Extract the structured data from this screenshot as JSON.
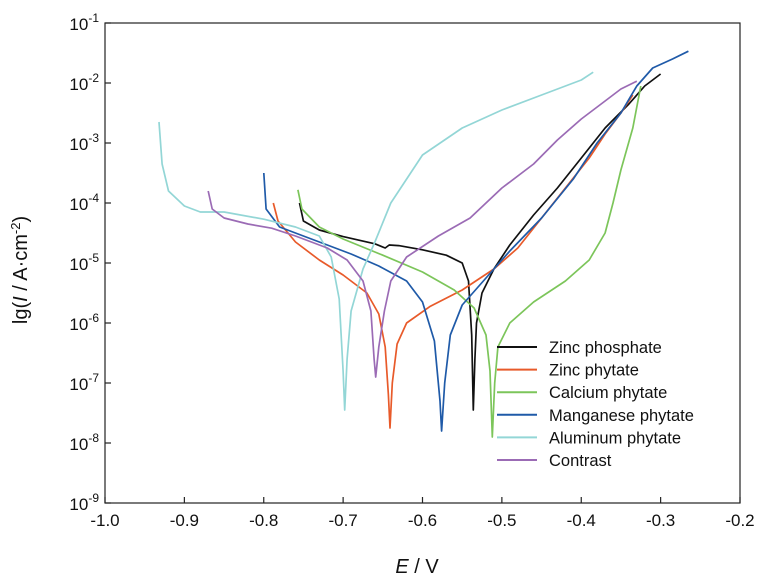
{
  "chart_data": {
    "type": "line",
    "xlabel": "E / V",
    "ylabel": "lg(I / A·cm-2)",
    "xlim": [
      -1.0,
      -0.2
    ],
    "ylim": [
      -9,
      -1
    ],
    "y_scale": "log10",
    "grid": false,
    "legend_position": "bottom-right",
    "x_ticks": [
      -1.0,
      -0.9,
      -0.8,
      -0.7,
      -0.6,
      -0.5,
      -0.4,
      -0.3,
      -0.2
    ],
    "x_tick_labels": [
      "-1.0",
      "-0.9",
      "-0.8",
      "-0.7",
      "-0.6",
      "-0.5",
      "-0.4",
      "-0.3",
      "-0.2"
    ],
    "y_ticks": [
      {
        "value": -9,
        "base": "10",
        "exp": "-9"
      },
      {
        "value": -8,
        "base": "10",
        "exp": "-8"
      },
      {
        "value": -7,
        "base": "10",
        "exp": "-7"
      },
      {
        "value": -6,
        "base": "10",
        "exp": "-6"
      },
      {
        "value": -5,
        "base": "10",
        "exp": "-5"
      },
      {
        "value": -4,
        "base": "10",
        "exp": "-4"
      },
      {
        "value": -3,
        "base": "10",
        "exp": "-3"
      },
      {
        "value": -2,
        "base": "10",
        "exp": "-2"
      },
      {
        "value": -1,
        "base": "10",
        "exp": "-1"
      }
    ],
    "series": [
      {
        "name": "Zinc phosphate",
        "color": "#111111",
        "points": [
          [
            -0.755,
            -4.0
          ],
          [
            -0.75,
            -4.3
          ],
          [
            -0.73,
            -4.45
          ],
          [
            -0.7,
            -4.56
          ],
          [
            -0.66,
            -4.68
          ],
          [
            -0.647,
            -4.75
          ],
          [
            -0.642,
            -4.7
          ],
          [
            -0.63,
            -4.71
          ],
          [
            -0.6,
            -4.78
          ],
          [
            -0.57,
            -4.87
          ],
          [
            -0.55,
            -5.0
          ],
          [
            -0.542,
            -5.3
          ],
          [
            -0.538,
            -6.2
          ],
          [
            -0.536,
            -7.45
          ],
          [
            -0.534,
            -6.6
          ],
          [
            -0.532,
            -6.0
          ],
          [
            -0.525,
            -5.5
          ],
          [
            -0.51,
            -5.1
          ],
          [
            -0.49,
            -4.7
          ],
          [
            -0.46,
            -4.2
          ],
          [
            -0.43,
            -3.75
          ],
          [
            -0.4,
            -3.25
          ],
          [
            -0.37,
            -2.75
          ],
          [
            -0.34,
            -2.35
          ],
          [
            -0.32,
            -2.05
          ],
          [
            -0.3,
            -1.85
          ]
        ]
      },
      {
        "name": "Zinc phytate",
        "color": "#e85a2a",
        "points": [
          [
            -0.788,
            -4.0
          ],
          [
            -0.782,
            -4.3
          ],
          [
            -0.76,
            -4.65
          ],
          [
            -0.73,
            -4.95
          ],
          [
            -0.7,
            -5.2
          ],
          [
            -0.67,
            -5.5
          ],
          [
            -0.655,
            -5.85
          ],
          [
            -0.647,
            -6.4
          ],
          [
            -0.643,
            -7.2
          ],
          [
            -0.641,
            -7.75
          ],
          [
            -0.638,
            -7.0
          ],
          [
            -0.632,
            -6.35
          ],
          [
            -0.62,
            -6.0
          ],
          [
            -0.59,
            -5.72
          ],
          [
            -0.55,
            -5.45
          ],
          [
            -0.51,
            -5.1
          ],
          [
            -0.48,
            -4.75
          ],
          [
            -0.45,
            -4.25
          ],
          [
            -0.42,
            -3.75
          ],
          [
            -0.39,
            -3.25
          ],
          [
            -0.37,
            -2.85
          ],
          [
            -0.35,
            -2.5
          ],
          [
            -0.335,
            -2.2
          ]
        ]
      },
      {
        "name": "Calcium phytate",
        "color": "#7cc55a",
        "points": [
          [
            -0.757,
            -3.78
          ],
          [
            -0.752,
            -4.1
          ],
          [
            -0.73,
            -4.4
          ],
          [
            -0.7,
            -4.6
          ],
          [
            -0.65,
            -4.87
          ],
          [
            -0.6,
            -5.15
          ],
          [
            -0.56,
            -5.45
          ],
          [
            -0.535,
            -5.75
          ],
          [
            -0.52,
            -6.2
          ],
          [
            -0.515,
            -6.8
          ],
          [
            -0.512,
            -7.9
          ],
          [
            -0.509,
            -7.0
          ],
          [
            -0.505,
            -6.4
          ],
          [
            -0.49,
            -6.0
          ],
          [
            -0.46,
            -5.65
          ],
          [
            -0.42,
            -5.3
          ],
          [
            -0.39,
            -4.95
          ],
          [
            -0.37,
            -4.5
          ],
          [
            -0.36,
            -4.0
          ],
          [
            -0.35,
            -3.45
          ],
          [
            -0.335,
            -2.75
          ],
          [
            -0.325,
            -2.05
          ]
        ]
      },
      {
        "name": "Manganese phytate",
        "color": "#1f5aa8",
        "points": [
          [
            -0.8,
            -3.5
          ],
          [
            -0.797,
            -4.1
          ],
          [
            -0.78,
            -4.4
          ],
          [
            -0.75,
            -4.55
          ],
          [
            -0.72,
            -4.7
          ],
          [
            -0.69,
            -4.85
          ],
          [
            -0.655,
            -5.05
          ],
          [
            -0.62,
            -5.3
          ],
          [
            -0.6,
            -5.65
          ],
          [
            -0.585,
            -6.3
          ],
          [
            -0.578,
            -7.3
          ],
          [
            -0.576,
            -7.8
          ],
          [
            -0.572,
            -7.0
          ],
          [
            -0.565,
            -6.2
          ],
          [
            -0.55,
            -5.7
          ],
          [
            -0.52,
            -5.25
          ],
          [
            -0.49,
            -4.8
          ],
          [
            -0.45,
            -4.25
          ],
          [
            -0.41,
            -3.6
          ],
          [
            -0.38,
            -3.0
          ],
          [
            -0.35,
            -2.5
          ],
          [
            -0.33,
            -2.05
          ],
          [
            -0.31,
            -1.75
          ],
          [
            -0.285,
            -1.6
          ],
          [
            -0.265,
            -1.47
          ]
        ]
      },
      {
        "name": "Aluminum phytate",
        "color": "#93d6d6",
        "points": [
          [
            -0.932,
            -2.65
          ],
          [
            -0.928,
            -3.35
          ],
          [
            -0.92,
            -3.8
          ],
          [
            -0.9,
            -4.05
          ],
          [
            -0.88,
            -4.15
          ],
          [
            -0.85,
            -4.15
          ],
          [
            -0.8,
            -4.27
          ],
          [
            -0.76,
            -4.4
          ],
          [
            -0.73,
            -4.55
          ],
          [
            -0.715,
            -4.9
          ],
          [
            -0.705,
            -5.6
          ],
          [
            -0.7,
            -6.8
          ],
          [
            -0.698,
            -7.45
          ],
          [
            -0.695,
            -6.6
          ],
          [
            -0.69,
            -5.8
          ],
          [
            -0.675,
            -5.1
          ],
          [
            -0.66,
            -4.65
          ],
          [
            -0.64,
            -4.0
          ],
          [
            -0.6,
            -3.2
          ],
          [
            -0.55,
            -2.75
          ],
          [
            -0.5,
            -2.45
          ],
          [
            -0.45,
            -2.2
          ],
          [
            -0.4,
            -1.95
          ],
          [
            -0.385,
            -1.82
          ]
        ]
      },
      {
        "name": "Contrast",
        "color": "#9b6bb5",
        "points": [
          [
            -0.87,
            -3.8
          ],
          [
            -0.865,
            -4.1
          ],
          [
            -0.85,
            -4.25
          ],
          [
            -0.82,
            -4.35
          ],
          [
            -0.79,
            -4.42
          ],
          [
            -0.76,
            -4.55
          ],
          [
            -0.72,
            -4.75
          ],
          [
            -0.695,
            -4.95
          ],
          [
            -0.675,
            -5.3
          ],
          [
            -0.665,
            -5.8
          ],
          [
            -0.661,
            -6.6
          ],
          [
            -0.659,
            -6.9
          ],
          [
            -0.655,
            -6.4
          ],
          [
            -0.648,
            -5.8
          ],
          [
            -0.64,
            -5.3
          ],
          [
            -0.62,
            -4.9
          ],
          [
            -0.58,
            -4.55
          ],
          [
            -0.54,
            -4.25
          ],
          [
            -0.5,
            -3.75
          ],
          [
            -0.46,
            -3.35
          ],
          [
            -0.43,
            -2.95
          ],
          [
            -0.4,
            -2.6
          ],
          [
            -0.37,
            -2.3
          ],
          [
            -0.35,
            -2.1
          ],
          [
            -0.33,
            -1.97
          ]
        ]
      }
    ]
  }
}
